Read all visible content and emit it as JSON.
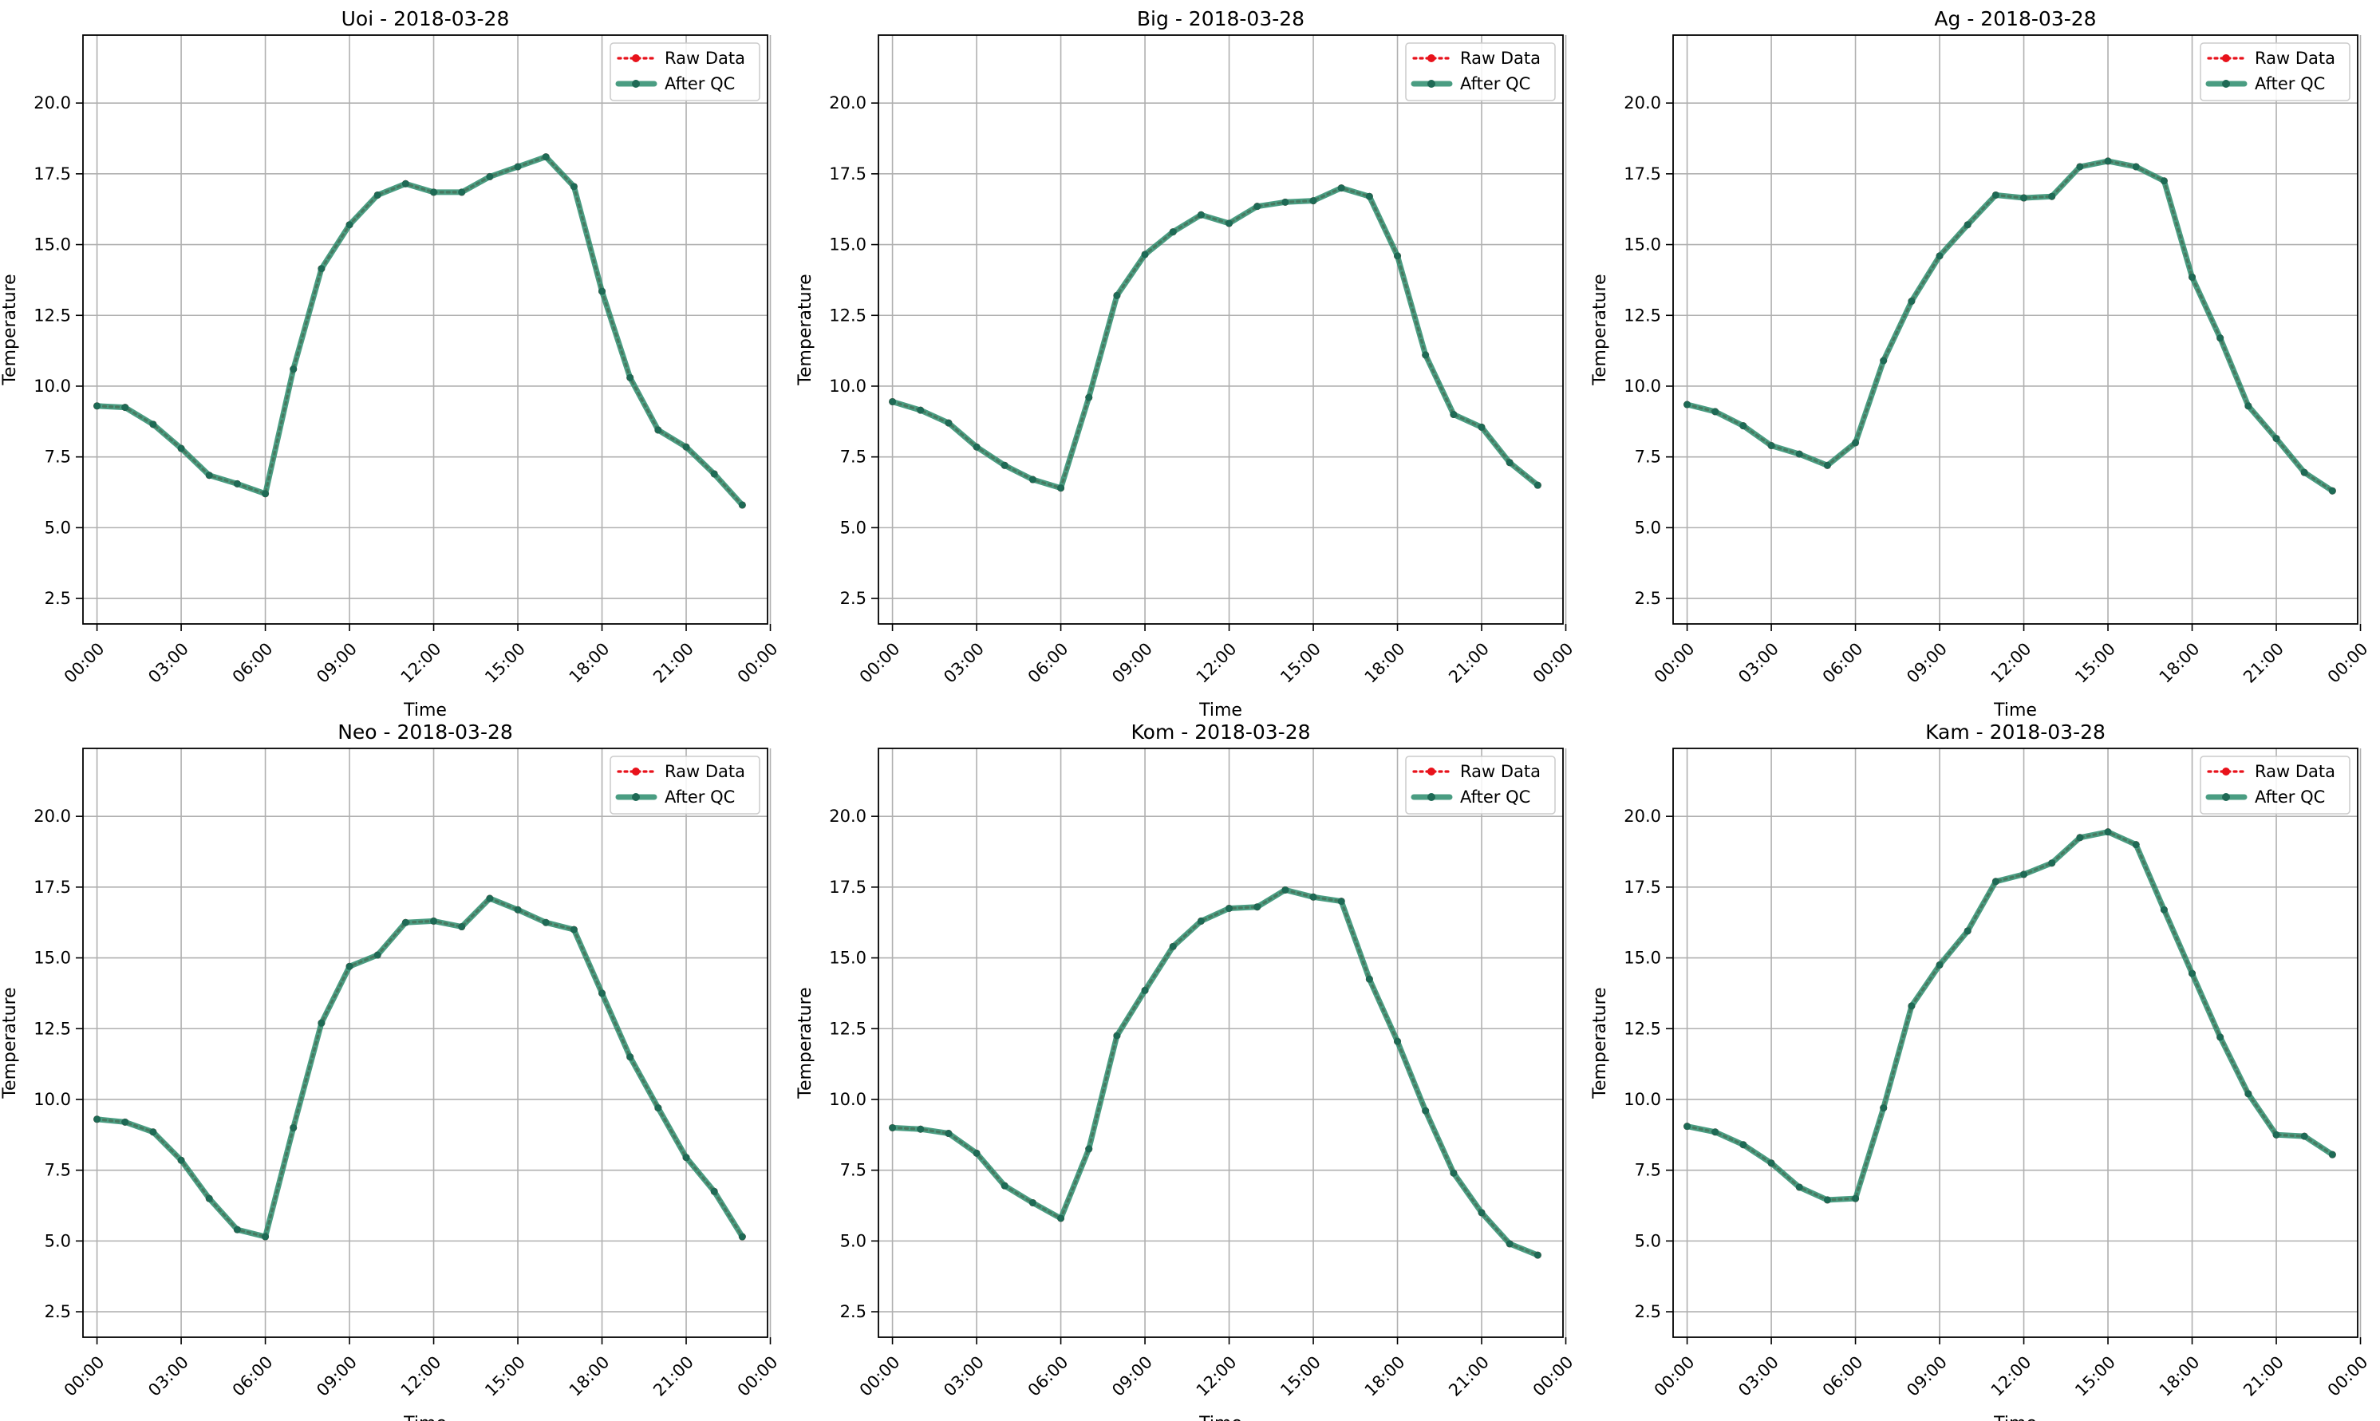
{
  "legend": {
    "raw_label": "Raw Data",
    "qc_label": "After QC",
    "placement": "upper right"
  },
  "colors": {
    "raw": "#e8121b",
    "qc": "#2a8c6c",
    "qc_marker": "#1e6a55",
    "grid": "#b0b0b0"
  },
  "chart_data": [
    {
      "type": "line",
      "title": "Uoi - 2018-03-28",
      "xlabel": "Time",
      "ylabel": "Temperature",
      "xlim": [
        -0.5,
        23.9
      ],
      "ylim": [
        1.6,
        22.4
      ],
      "x_ticks": [
        0,
        3,
        6,
        9,
        12,
        15,
        18,
        21,
        24
      ],
      "x_tick_labels": [
        "00:00",
        "03:00",
        "06:00",
        "09:00",
        "12:00",
        "15:00",
        "18:00",
        "21:00",
        "00:00"
      ],
      "y_ticks": [
        2.5,
        5.0,
        7.5,
        10.0,
        12.5,
        15.0,
        17.5,
        20.0
      ],
      "y_tick_labels": [
        "2.5",
        "5.0",
        "7.5",
        "10.0",
        "12.5",
        "15.0",
        "17.5",
        "20.0"
      ],
      "grid": true,
      "x": [
        0,
        1,
        2,
        3,
        4,
        5,
        6,
        7,
        8,
        9,
        10,
        11,
        12,
        13,
        14,
        15,
        16,
        17,
        18,
        19,
        20,
        21,
        22,
        23
      ],
      "series": [
        {
          "name": "Raw Data",
          "values": [
            9.3,
            9.25,
            8.65,
            7.8,
            6.85,
            6.55,
            6.2,
            10.6,
            14.15,
            15.7,
            16.75,
            17.15,
            16.85,
            16.85,
            17.4,
            17.75,
            18.1,
            17.05,
            13.35,
            10.3,
            8.45,
            7.85,
            6.9,
            5.8
          ]
        },
        {
          "name": "After QC",
          "values": [
            9.3,
            9.25,
            8.65,
            7.8,
            6.85,
            6.55,
            6.2,
            10.6,
            14.15,
            15.7,
            16.75,
            17.15,
            16.85,
            16.85,
            17.4,
            17.75,
            18.1,
            17.05,
            13.35,
            10.3,
            8.45,
            7.85,
            6.9,
            5.8
          ]
        }
      ]
    },
    {
      "type": "line",
      "title": "Big - 2018-03-28",
      "xlabel": "Time",
      "ylabel": "Temperature",
      "xlim": [
        -0.5,
        23.9
      ],
      "ylim": [
        1.6,
        22.4
      ],
      "x_ticks": [
        0,
        3,
        6,
        9,
        12,
        15,
        18,
        21,
        24
      ],
      "x_tick_labels": [
        "00:00",
        "03:00",
        "06:00",
        "09:00",
        "12:00",
        "15:00",
        "18:00",
        "21:00",
        "00:00"
      ],
      "y_ticks": [
        2.5,
        5.0,
        7.5,
        10.0,
        12.5,
        15.0,
        17.5,
        20.0
      ],
      "y_tick_labels": [
        "2.5",
        "5.0",
        "7.5",
        "10.0",
        "12.5",
        "15.0",
        "17.5",
        "20.0"
      ],
      "grid": true,
      "x": [
        0,
        1,
        2,
        3,
        4,
        5,
        6,
        7,
        8,
        9,
        10,
        11,
        12,
        13,
        14,
        15,
        16,
        17,
        18,
        19,
        20,
        21,
        22,
        23
      ],
      "series": [
        {
          "name": "Raw Data",
          "values": [
            9.45,
            9.15,
            8.7,
            7.85,
            7.2,
            6.7,
            6.4,
            9.6,
            13.2,
            14.65,
            15.45,
            16.05,
            15.75,
            16.35,
            16.5,
            16.55,
            17.0,
            16.7,
            14.6,
            11.1,
            9.0,
            8.55,
            7.3,
            6.5
          ]
        },
        {
          "name": "After QC",
          "values": [
            9.45,
            9.15,
            8.7,
            7.85,
            7.2,
            6.7,
            6.4,
            9.6,
            13.2,
            14.65,
            15.45,
            16.05,
            15.75,
            16.35,
            16.5,
            16.55,
            17.0,
            16.7,
            14.6,
            11.1,
            9.0,
            8.55,
            7.3,
            6.5
          ]
        }
      ]
    },
    {
      "type": "line",
      "title": "Ag - 2018-03-28",
      "xlabel": "Time",
      "ylabel": "Temperature",
      "xlim": [
        -0.5,
        23.9
      ],
      "ylim": [
        1.6,
        22.4
      ],
      "x_ticks": [
        0,
        3,
        6,
        9,
        12,
        15,
        18,
        21,
        24
      ],
      "x_tick_labels": [
        "00:00",
        "03:00",
        "06:00",
        "09:00",
        "12:00",
        "15:00",
        "18:00",
        "21:00",
        "00:00"
      ],
      "y_ticks": [
        2.5,
        5.0,
        7.5,
        10.0,
        12.5,
        15.0,
        17.5,
        20.0
      ],
      "y_tick_labels": [
        "2.5",
        "5.0",
        "7.5",
        "10.0",
        "12.5",
        "15.0",
        "17.5",
        "20.0"
      ],
      "grid": true,
      "x": [
        0,
        1,
        2,
        3,
        4,
        5,
        6,
        7,
        8,
        9,
        10,
        11,
        12,
        13,
        14,
        15,
        16,
        17,
        18,
        19,
        20,
        21,
        22,
        23
      ],
      "series": [
        {
          "name": "Raw Data",
          "values": [
            9.35,
            9.1,
            8.6,
            7.9,
            7.6,
            7.2,
            8.0,
            10.9,
            13.0,
            14.6,
            15.7,
            16.75,
            16.65,
            16.7,
            17.75,
            17.95,
            17.75,
            17.25,
            13.85,
            11.7,
            9.3,
            8.15,
            6.95,
            6.3
          ]
        },
        {
          "name": "After QC",
          "values": [
            9.35,
            9.1,
            8.6,
            7.9,
            7.6,
            7.2,
            8.0,
            10.9,
            13.0,
            14.6,
            15.7,
            16.75,
            16.65,
            16.7,
            17.75,
            17.95,
            17.75,
            17.25,
            13.85,
            11.7,
            9.3,
            8.15,
            6.95,
            6.3
          ]
        }
      ]
    },
    {
      "type": "line",
      "title": "Neo - 2018-03-28",
      "xlabel": "Time",
      "ylabel": "Temperature",
      "xlim": [
        -0.5,
        23.9
      ],
      "ylim": [
        1.6,
        22.4
      ],
      "x_ticks": [
        0,
        3,
        6,
        9,
        12,
        15,
        18,
        21,
        24
      ],
      "x_tick_labels": [
        "00:00",
        "03:00",
        "06:00",
        "09:00",
        "12:00",
        "15:00",
        "18:00",
        "21:00",
        "00:00"
      ],
      "y_ticks": [
        2.5,
        5.0,
        7.5,
        10.0,
        12.5,
        15.0,
        17.5,
        20.0
      ],
      "y_tick_labels": [
        "2.5",
        "5.0",
        "7.5",
        "10.0",
        "12.5",
        "15.0",
        "17.5",
        "20.0"
      ],
      "grid": true,
      "x": [
        0,
        1,
        2,
        3,
        4,
        5,
        6,
        7,
        8,
        9,
        10,
        11,
        12,
        13,
        14,
        15,
        16,
        17,
        18,
        19,
        20,
        21,
        22,
        23
      ],
      "series": [
        {
          "name": "Raw Data",
          "values": [
            9.3,
            9.2,
            8.85,
            7.85,
            6.5,
            5.4,
            5.15,
            9.0,
            12.7,
            14.7,
            15.1,
            16.25,
            16.3,
            16.1,
            17.1,
            16.7,
            16.25,
            16.0,
            13.75,
            11.5,
            9.7,
            7.95,
            6.75,
            5.15
          ]
        },
        {
          "name": "After QC",
          "values": [
            9.3,
            9.2,
            8.85,
            7.85,
            6.5,
            5.4,
            5.15,
            9.0,
            12.7,
            14.7,
            15.1,
            16.25,
            16.3,
            16.1,
            17.1,
            16.7,
            16.25,
            16.0,
            13.75,
            11.5,
            9.7,
            7.95,
            6.75,
            5.15
          ]
        }
      ]
    },
    {
      "type": "line",
      "title": "Kom - 2018-03-28",
      "xlabel": "Time",
      "ylabel": "Temperature",
      "xlim": [
        -0.5,
        23.9
      ],
      "ylim": [
        1.6,
        22.4
      ],
      "x_ticks": [
        0,
        3,
        6,
        9,
        12,
        15,
        18,
        21,
        24
      ],
      "x_tick_labels": [
        "00:00",
        "03:00",
        "06:00",
        "09:00",
        "12:00",
        "15:00",
        "18:00",
        "21:00",
        "00:00"
      ],
      "y_ticks": [
        2.5,
        5.0,
        7.5,
        10.0,
        12.5,
        15.0,
        17.5,
        20.0
      ],
      "y_tick_labels": [
        "2.5",
        "5.0",
        "7.5",
        "10.0",
        "12.5",
        "15.0",
        "17.5",
        "20.0"
      ],
      "grid": true,
      "x": [
        0,
        1,
        2,
        3,
        4,
        5,
        6,
        7,
        8,
        9,
        10,
        11,
        12,
        13,
        14,
        15,
        16,
        17,
        18,
        19,
        20,
        21,
        22,
        23
      ],
      "series": [
        {
          "name": "Raw Data",
          "values": [
            9.0,
            8.95,
            8.8,
            8.1,
            6.95,
            6.35,
            5.8,
            8.25,
            12.25,
            13.85,
            15.4,
            16.3,
            16.75,
            16.8,
            17.4,
            17.15,
            17.0,
            14.25,
            12.05,
            9.6,
            7.4,
            6.0,
            4.9,
            4.5
          ]
        },
        {
          "name": "After QC",
          "values": [
            9.0,
            8.95,
            8.8,
            8.1,
            6.95,
            6.35,
            5.8,
            8.25,
            12.25,
            13.85,
            15.4,
            16.3,
            16.75,
            16.8,
            17.4,
            17.15,
            17.0,
            14.25,
            12.05,
            9.6,
            7.4,
            6.0,
            4.9,
            4.5
          ]
        }
      ]
    },
    {
      "type": "line",
      "title": "Kam - 2018-03-28",
      "xlabel": "Time",
      "ylabel": "Temperature",
      "xlim": [
        -0.5,
        23.9
      ],
      "ylim": [
        1.6,
        22.4
      ],
      "x_ticks": [
        0,
        3,
        6,
        9,
        12,
        15,
        18,
        21,
        24
      ],
      "x_tick_labels": [
        "00:00",
        "03:00",
        "06:00",
        "09:00",
        "12:00",
        "15:00",
        "18:00",
        "21:00",
        "00:00"
      ],
      "y_ticks": [
        2.5,
        5.0,
        7.5,
        10.0,
        12.5,
        15.0,
        17.5,
        20.0
      ],
      "y_tick_labels": [
        "2.5",
        "5.0",
        "7.5",
        "10.0",
        "12.5",
        "15.0",
        "17.5",
        "20.0"
      ],
      "grid": true,
      "x": [
        0,
        1,
        2,
        3,
        4,
        5,
        6,
        7,
        8,
        9,
        10,
        11,
        12,
        13,
        14,
        15,
        16,
        17,
        18,
        19,
        20,
        21,
        22,
        23
      ],
      "series": [
        {
          "name": "Raw Data",
          "values": [
            9.05,
            8.85,
            8.4,
            7.75,
            6.9,
            6.45,
            6.5,
            9.7,
            13.3,
            14.75,
            15.95,
            17.7,
            17.95,
            18.35,
            19.25,
            19.45,
            19.0,
            16.7,
            14.45,
            12.2,
            10.2,
            8.75,
            8.7,
            8.05
          ]
        },
        {
          "name": "After QC",
          "values": [
            9.05,
            8.85,
            8.4,
            7.75,
            6.9,
            6.45,
            6.5,
            9.7,
            13.3,
            14.75,
            15.95,
            17.7,
            17.95,
            18.35,
            19.25,
            19.45,
            19.0,
            16.7,
            14.45,
            12.2,
            10.2,
            8.75,
            8.7,
            8.05
          ]
        }
      ]
    }
  ]
}
